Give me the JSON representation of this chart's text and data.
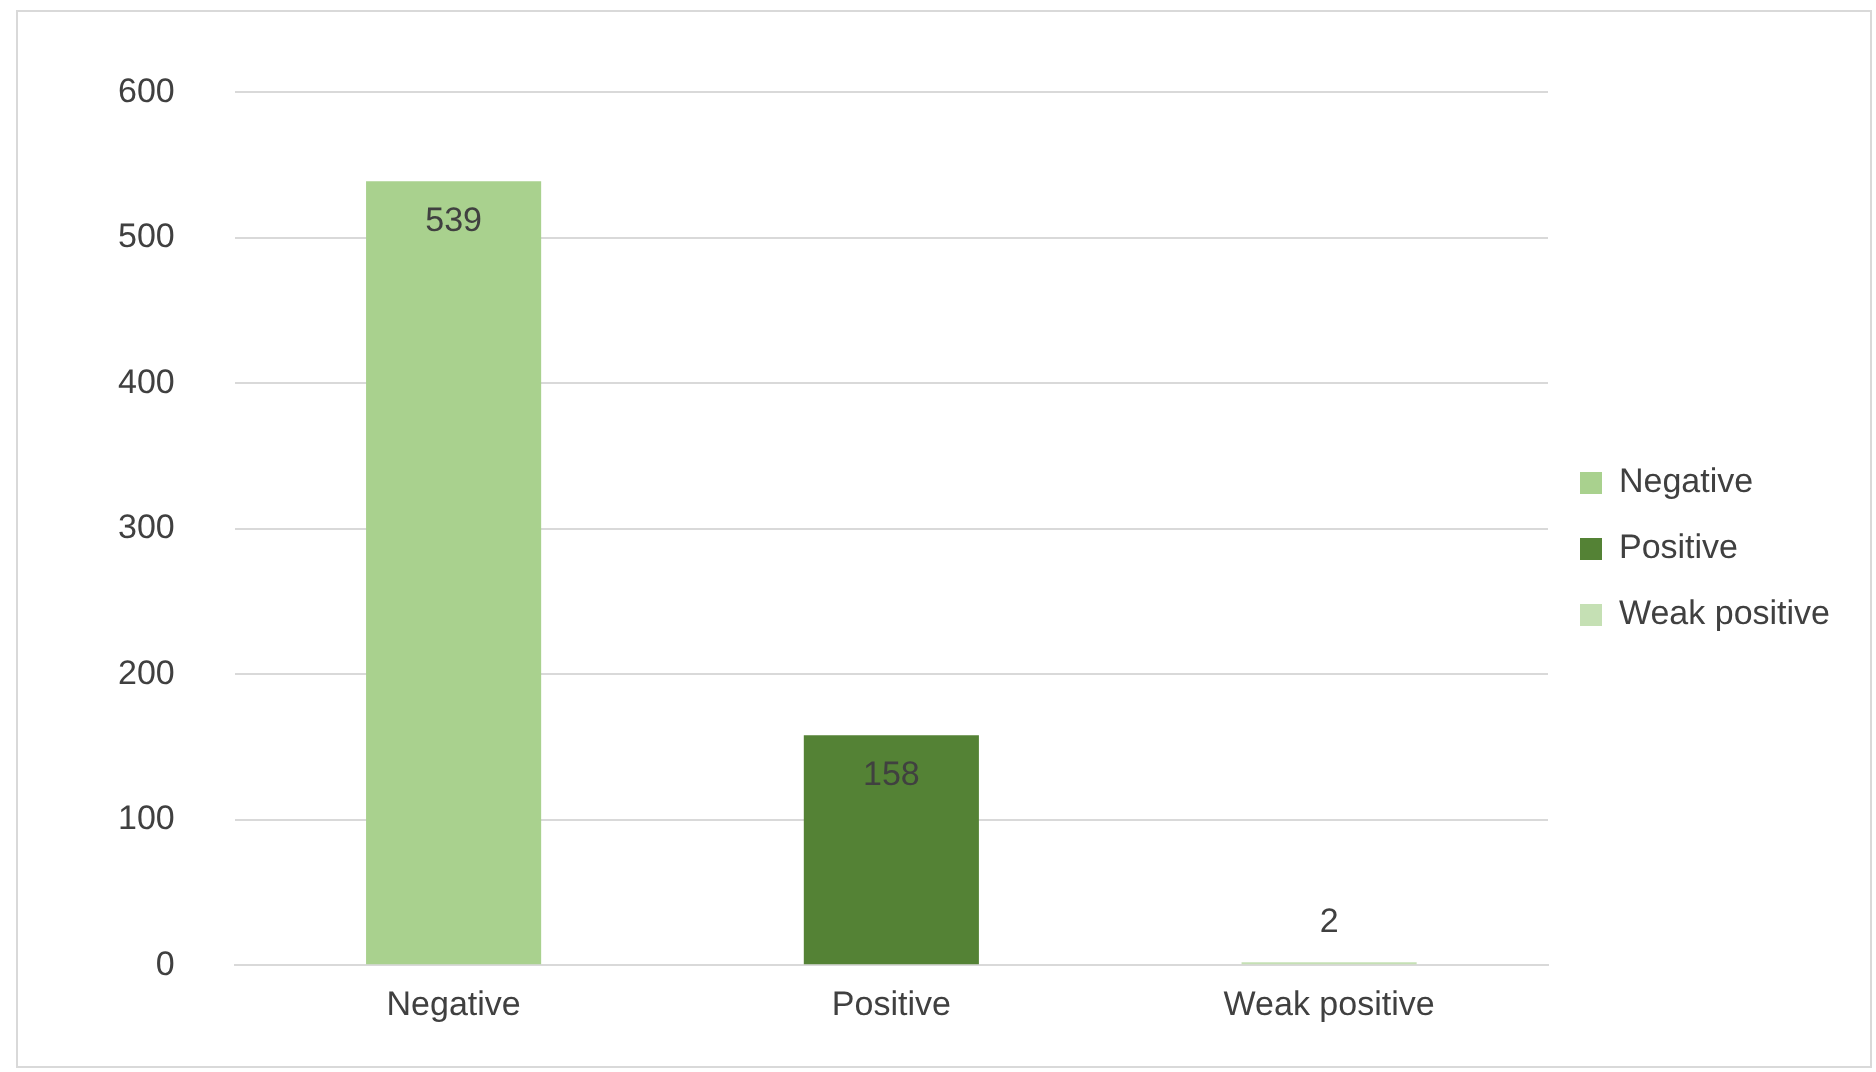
{
  "chart_data": {
    "type": "bar",
    "categories": [
      "Negative",
      "Positive",
      "Weak positive"
    ],
    "series": [
      {
        "name": "Negative",
        "color": "#a9d18e",
        "values": [
          539,
          null,
          null
        ]
      },
      {
        "name": "Positive",
        "color": "#548235",
        "values": [
          null,
          158,
          null
        ]
      },
      {
        "name": "Weak positive",
        "color": "#c5e0b4",
        "values": [
          null,
          null,
          2
        ]
      }
    ],
    "ylim": [
      0,
      600
    ],
    "yticks": [
      0,
      100,
      200,
      300,
      400,
      500,
      600
    ],
    "grid": "y",
    "legend": "right",
    "data_labels": true
  }
}
